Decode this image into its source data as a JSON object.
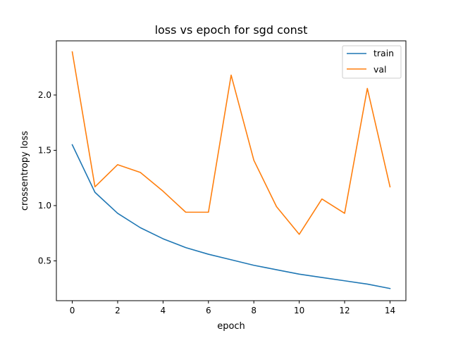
{
  "chart_data": {
    "type": "line",
    "title": "loss vs epoch for sgd const",
    "xlabel": "epoch",
    "ylabel": "crossentropy loss",
    "x": [
      0,
      1,
      2,
      3,
      4,
      5,
      6,
      7,
      8,
      9,
      10,
      11,
      12,
      13,
      14
    ],
    "xlim": [
      -0.7,
      14.7
    ],
    "ylim": [
      0.14,
      2.49
    ],
    "xticks": [
      0,
      2,
      4,
      6,
      8,
      10,
      12,
      14
    ],
    "yticks": [
      0.5,
      1.0,
      1.5,
      2.0
    ],
    "xtick_labels": [
      "0",
      "2",
      "4",
      "6",
      "8",
      "10",
      "12",
      "14"
    ],
    "ytick_labels": [
      "0.5",
      "1.0",
      "1.5",
      "2.0"
    ],
    "grid": false,
    "legend_position": "top-right",
    "series": [
      {
        "name": "train",
        "color": "#1f77b4",
        "values": [
          1.55,
          1.12,
          0.93,
          0.8,
          0.7,
          0.62,
          0.56,
          0.51,
          0.46,
          0.42,
          0.38,
          0.35,
          0.32,
          0.29,
          0.25
        ]
      },
      {
        "name": "val",
        "color": "#ff7f0e",
        "values": [
          2.39,
          1.17,
          1.37,
          1.3,
          1.13,
          0.94,
          0.94,
          2.18,
          1.41,
          0.99,
          0.74,
          1.06,
          0.93,
          2.06,
          1.17
        ]
      }
    ]
  }
}
